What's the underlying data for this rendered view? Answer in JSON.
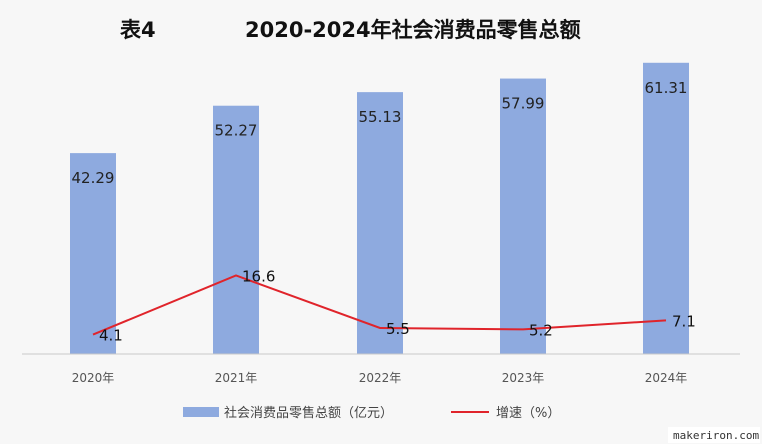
{
  "chart_data": {
    "type": "bar",
    "title_prefix": "表4",
    "title": "2020-2024年社会消费品零售总额",
    "categories": [
      "2020年",
      "2021年",
      "2022年",
      "2023年",
      "2024年"
    ],
    "series": [
      {
        "name": "社会消费品零售总额（亿元）",
        "type": "bar",
        "color": "#8eaadf",
        "values": [
          42.29,
          52.27,
          55.13,
          57.99,
          61.31
        ],
        "labels": [
          "42.29",
          "52.27",
          "55.13",
          "57.99",
          "61.31"
        ]
      },
      {
        "name": "增速（%）",
        "type": "line",
        "color": "#e0242b",
        "values": [
          4.1,
          16.6,
          5.5,
          5.2,
          7.1
        ],
        "labels": [
          "4.1",
          "16.6",
          "5.5",
          "5.2",
          "7.1"
        ]
      }
    ],
    "grid": false,
    "legend_position": "bottom"
  },
  "watermark": "makeriron.com"
}
